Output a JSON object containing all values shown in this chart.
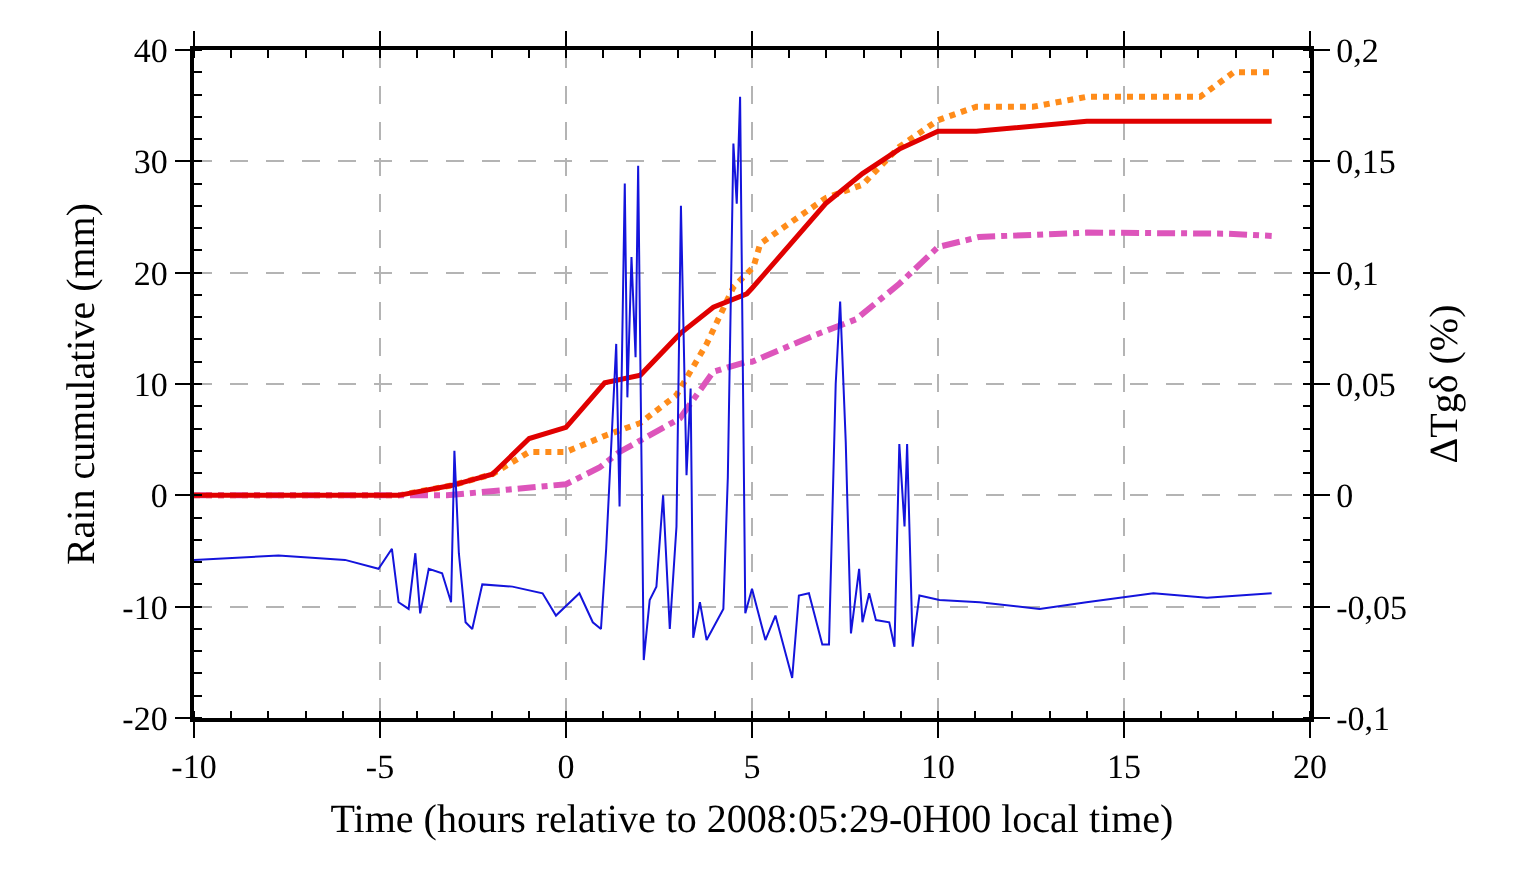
{
  "chart_data": {
    "type": "line",
    "xlabel": "Time (hours relative to 2008:05:29-0H00 local time)",
    "ylabel": "Rain cumulative (mm)",
    "y2label": "ΔTgδ (%)",
    "xlim": [
      -10,
      20
    ],
    "xticks": [
      -10,
      -5,
      0,
      5,
      10,
      15,
      20
    ],
    "ylim": [
      -20,
      40
    ],
    "yticks": [
      -20,
      -10,
      0,
      10,
      20,
      30,
      40
    ],
    "y2lim": [
      -0.1,
      0.2
    ],
    "y2ticks": [
      {
        "value": -0.1,
        "label": "-0,1"
      },
      {
        "value": -0.05,
        "label": "-0,05"
      },
      {
        "value": 0,
        "label": "0"
      },
      {
        "value": 0.05,
        "label": "0,05"
      },
      {
        "value": 0.1,
        "label": "0,1"
      },
      {
        "value": 0.15,
        "label": "0,15"
      },
      {
        "value": 0.2,
        "label": "0,2"
      }
    ],
    "grid": true,
    "marker": "none",
    "series": [
      {
        "color": "#1414dc",
        "line_style": "solid",
        "axis": "y2",
        "x": [
          -10,
          -7.73,
          -5.94,
          -5.04,
          -4.68,
          -4.5,
          -4.23,
          -4.05,
          -3.92,
          -3.69,
          -3.33,
          -3.09,
          -3.0,
          -2.88,
          -2.7,
          -2.52,
          -2.25,
          -1.44,
          -0.63,
          -0.27,
          0.36,
          0.72,
          0.94,
          1.08,
          1.35,
          1.44,
          1.58,
          1.65,
          1.76,
          1.87,
          1.94,
          2.09,
          2.25,
          2.43,
          2.61,
          2.79,
          2.97,
          3.09,
          3.24,
          3.35,
          3.42,
          3.6,
          3.78,
          4.23,
          4.35,
          4.5,
          4.59,
          4.68,
          4.82,
          5.0,
          5.36,
          5.63,
          6.08,
          6.26,
          6.53,
          6.89,
          7.07,
          7.25,
          7.37,
          7.52,
          7.66,
          7.88,
          7.97,
          8.15,
          8.33,
          8.69,
          8.83,
          8.96,
          9.1,
          9.17,
          9.32,
          9.5,
          10.04,
          11.12,
          12.73,
          13.99,
          15.79,
          17.23,
          18.97
        ],
        "values": [
          -0.029,
          -0.027,
          -0.029,
          -0.033,
          -0.024,
          -0.048,
          -0.051,
          -0.026,
          -0.053,
          -0.033,
          -0.035,
          -0.048,
          0.02,
          -0.026,
          -0.057,
          -0.06,
          -0.04,
          -0.041,
          -0.044,
          -0.054,
          -0.044,
          -0.057,
          -0.06,
          -0.024,
          0.068,
          -0.005,
          0.14,
          0.044,
          0.107,
          0.062,
          0.148,
          -0.074,
          -0.047,
          -0.041,
          0.0,
          -0.06,
          -0.014,
          0.13,
          0.009,
          0.048,
          -0.064,
          -0.048,
          -0.065,
          -0.051,
          0.008,
          0.158,
          0.131,
          0.179,
          -0.053,
          -0.042,
          -0.065,
          -0.054,
          -0.082,
          -0.045,
          -0.044,
          -0.067,
          -0.067,
          0.05,
          0.087,
          0.024,
          -0.062,
          -0.033,
          -0.057,
          -0.044,
          -0.056,
          -0.057,
          -0.068,
          0.023,
          -0.014,
          0.023,
          -0.068,
          -0.045,
          -0.047,
          -0.048,
          -0.051,
          -0.048,
          -0.044,
          -0.046,
          -0.044
        ]
      },
      {
        "color": "#ff8c1a",
        "line_style": "dotted",
        "x": [
          -10,
          -4.5,
          -3.06,
          -1.98,
          -0.99,
          0,
          1.08,
          2.0,
          2.97,
          3.78,
          4.5,
          5.04,
          5.22,
          6.98,
          7.97,
          8.96,
          10,
          11.03,
          12.55,
          14,
          17.05,
          17.95,
          18.97
        ],
        "values": [
          0,
          0,
          0.9,
          1.9,
          3.9,
          3.9,
          5.4,
          6.5,
          9.0,
          13.6,
          18.7,
          20.5,
          22.6,
          26.7,
          27.9,
          31.3,
          33.7,
          34.9,
          34.9,
          35.8,
          35.8,
          38.0,
          38.0
        ]
      },
      {
        "color": "#dd55bb",
        "line_style": "dashdot",
        "x": [
          -10,
          -3.2,
          0,
          0.9,
          1.44,
          3.06,
          3.96,
          4.86,
          5.0,
          6.62,
          7.79,
          8.96,
          10,
          11.1,
          14,
          17.8,
          18.97
        ],
        "values": [
          0,
          0,
          1.0,
          2.5,
          3.9,
          6.9,
          11.1,
          12.0,
          12.0,
          14.3,
          15.8,
          19.0,
          22.3,
          23.2,
          23.6,
          23.5,
          23.3
        ]
      },
      {
        "color": "#e00000",
        "line_style": "solid",
        "x": [
          -10,
          -4.5,
          -3.06,
          -1.98,
          -0.99,
          0,
          1.04,
          2.0,
          3.06,
          3.96,
          4.86,
          5.0,
          6.98,
          7.97,
          8.96,
          10,
          11.03,
          14,
          18.97
        ],
        "values": [
          0,
          0,
          0.9,
          1.9,
          5.1,
          6.1,
          10.1,
          10.8,
          14.5,
          16.9,
          18.1,
          18.6,
          26.2,
          28.9,
          31.1,
          32.7,
          32.7,
          33.6,
          33.6
        ]
      }
    ]
  }
}
